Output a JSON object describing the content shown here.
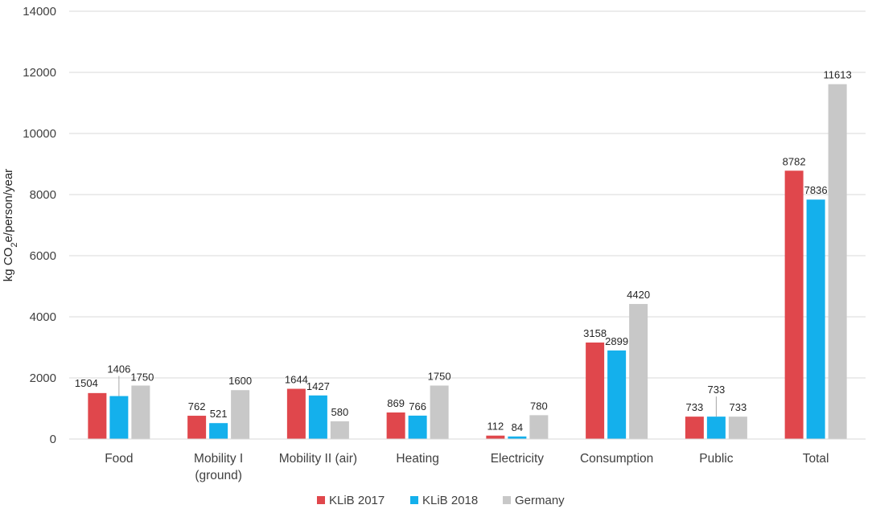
{
  "chart_data": {
    "type": "bar",
    "title": "",
    "xlabel": "",
    "ylabel": "kg CO2e/person/year",
    "ylabel_parts": {
      "pre": "kg CO",
      "sub": "2",
      "post": "e/person/year"
    },
    "ylim": [
      0,
      14000
    ],
    "yticks": [
      0,
      2000,
      4000,
      6000,
      8000,
      10000,
      12000,
      14000
    ],
    "grid": true,
    "legend_position": "bottom",
    "categories": [
      [
        "Food"
      ],
      [
        "Mobility I",
        "(ground)"
      ],
      [
        "Mobility II (air)"
      ],
      [
        "Heating"
      ],
      [
        "Electricity"
      ],
      [
        "Consumption"
      ],
      [
        "Public"
      ],
      [
        "Total"
      ]
    ],
    "series": [
      {
        "name": "KLiB 2017",
        "color": "#e0474c",
        "values": [
          1504,
          762,
          1644,
          869,
          112,
          3158,
          733,
          8782
        ]
      },
      {
        "name": "KLiB 2018",
        "color": "#14b0ec",
        "values": [
          1406,
          521,
          1427,
          766,
          84,
          2899,
          733,
          7836
        ]
      },
      {
        "name": "Germany",
        "color": "#c8c8c8",
        "values": [
          1750,
          1600,
          580,
          1750,
          780,
          4420,
          733,
          11613
        ]
      }
    ]
  }
}
